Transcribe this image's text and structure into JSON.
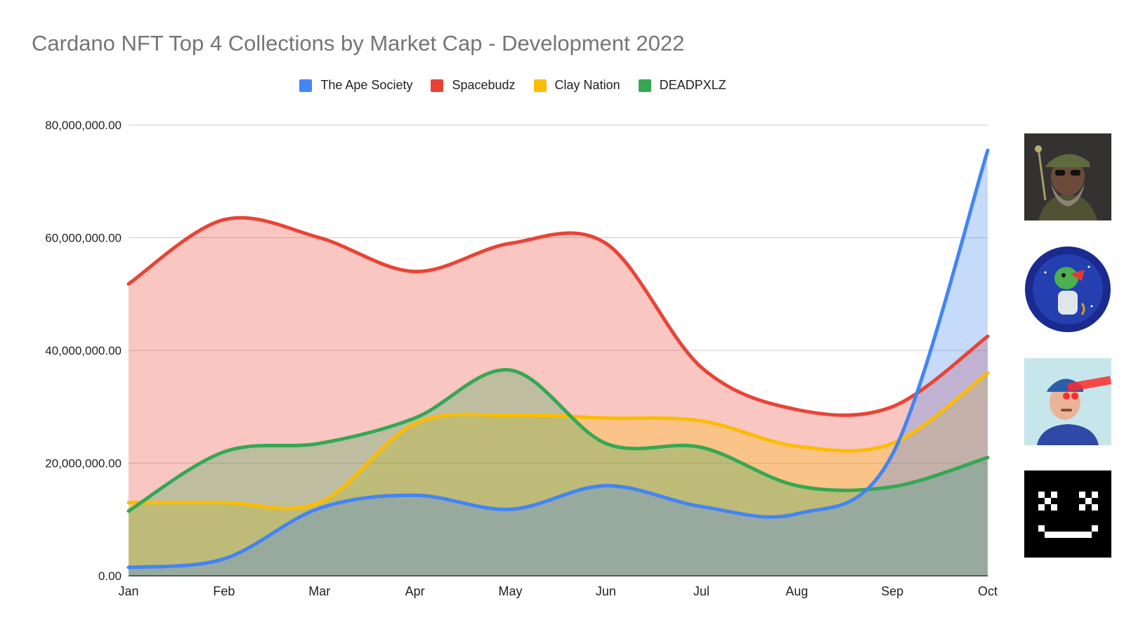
{
  "title": "Cardano NFT Top 4 Collections by Market Cap - Development 2022",
  "chart_data": {
    "type": "area",
    "title": "Cardano NFT Top 4 Collections by Market Cap - Development 2022",
    "xlabel": "",
    "ylabel": "",
    "categories": [
      "Jan",
      "Feb",
      "Mar",
      "Apr",
      "May",
      "Jun",
      "Jul",
      "Aug",
      "Sep",
      "Oct"
    ],
    "ylim": [
      0,
      80000000
    ],
    "yticks": [
      "0.00",
      "20,000,000.00",
      "40,000,000.00",
      "60,000,000.00",
      "80,000,000.00"
    ],
    "grid": true,
    "legend_position": "top",
    "series": [
      {
        "name": "The Ape Society",
        "color": "#4285F4",
        "values": [
          1500000,
          3000000,
          12000000,
          14300000,
          11800000,
          16000000,
          12300000,
          11000000,
          21500000,
          75500000
        ]
      },
      {
        "name": "Spacebudz",
        "color": "#EA4335",
        "values": [
          51800000,
          63200000,
          60000000,
          54000000,
          59000000,
          59000000,
          37000000,
          29500000,
          30000000,
          42500000
        ]
      },
      {
        "name": "Clay Nation",
        "color": "#FBBC04",
        "values": [
          13000000,
          13000000,
          13000000,
          27000000,
          28500000,
          28000000,
          27500000,
          23000000,
          23500000,
          36000000
        ]
      },
      {
        "name": "DEADPXLZ",
        "color": "#34A853",
        "values": [
          11500000,
          22000000,
          23500000,
          28000000,
          36500000,
          23500000,
          22800000,
          16000000,
          15800000,
          21000000
        ]
      }
    ],
    "draw_order": [
      "Spacebudz",
      "Clay Nation",
      "DEADPXLZ",
      "The Ape Society"
    ]
  },
  "thumbnails": [
    {
      "name": "The Ape Society",
      "icon": "ape-portrait-icon"
    },
    {
      "name": "Spacebudz",
      "icon": "astronaut-dino-icon"
    },
    {
      "name": "Clay Nation",
      "icon": "clay-figure-laser-eyes-icon"
    },
    {
      "name": "DEADPXLZ",
      "icon": "pixel-dead-face-icon"
    }
  ]
}
